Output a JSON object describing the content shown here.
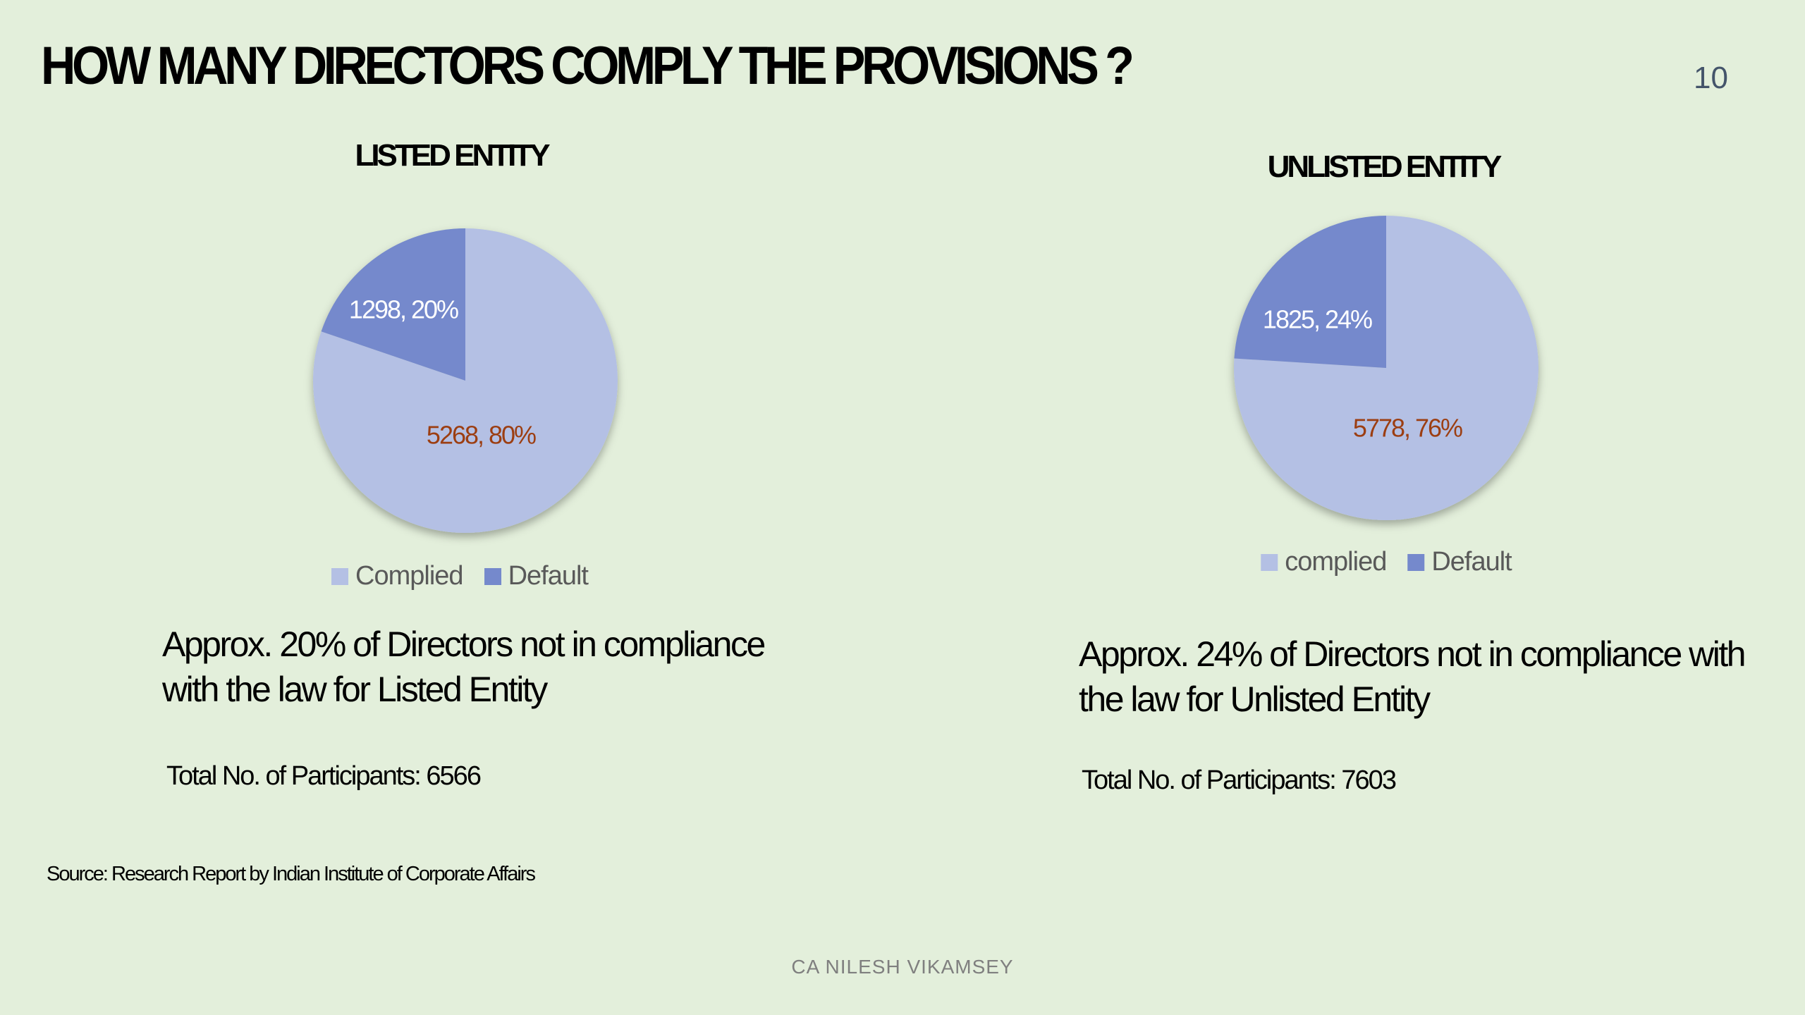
{
  "slide": {
    "title": "HOW MANY DIRECTORS COMPLY THE PROVISIONS ?",
    "page_number": "10",
    "source": "Source: Research Report by Indian Institute of Corporate Affairs",
    "footer": "CA NILESH VIKAMSEY"
  },
  "colors": {
    "complied": "#b4c0e4",
    "default": "#7589cc",
    "complied_label": "#9c3e12",
    "default_label": "#ffffff"
  },
  "chart_data": [
    {
      "type": "pie",
      "title": "LISTED ENTITY",
      "slices": [
        {
          "name": "Complied",
          "value": 5268,
          "percent": 80,
          "label": "5268, 80%"
        },
        {
          "name": "Default",
          "value": 1298,
          "percent": 20,
          "label": "1298, 20%"
        }
      ],
      "legend": {
        "position": "bottom",
        "entries": [
          "Complied",
          "Default"
        ]
      },
      "note": [
        "Approx. 20% of Directors not in compliance",
        "with the law for Listed Entity"
      ],
      "total_participants": "Total No. of Participants: 6566"
    },
    {
      "type": "pie",
      "title": "UNLISTED ENTITY",
      "slices": [
        {
          "name": "complied",
          "value": 5778,
          "percent": 76,
          "label": "5778, 76%"
        },
        {
          "name": "Default",
          "value": 1825,
          "percent": 24,
          "label": "1825, 24%"
        }
      ],
      "legend": {
        "position": "bottom",
        "entries": [
          "complied",
          "Default"
        ]
      },
      "note": [
        "Approx. 24% of Directors not in compliance with",
        "the law for Unlisted Entity"
      ],
      "total_participants": "Total No. of Participants: 7603"
    }
  ]
}
